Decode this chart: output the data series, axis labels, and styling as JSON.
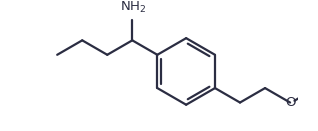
{
  "bg_color": "#ffffff",
  "line_color": "#2b2d42",
  "line_width": 1.6,
  "font_size_nh2": 9.5,
  "font_size_o": 9.5,
  "figsize": [
    3.18,
    1.31
  ],
  "dpi": 100
}
